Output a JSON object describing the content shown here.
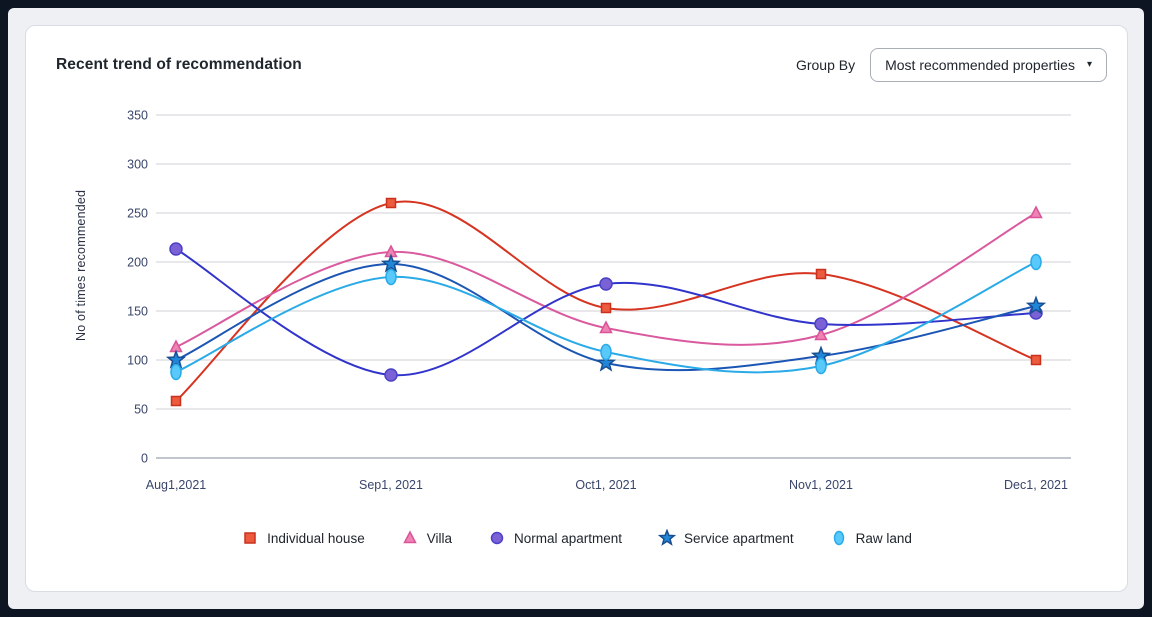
{
  "window": {
    "frame_color": "#0d1422",
    "page_bg": "#eef0f3",
    "card_bg": "#ffffff"
  },
  "header": {
    "title": "Recent trend of recommendation",
    "group_by_label": "Group By",
    "group_by_value": "Most recommended properties",
    "dropdown_caret": "▾"
  },
  "chart_data": {
    "type": "line",
    "title": "Recent trend of recommendation",
    "xlabel": "",
    "ylabel": "No of times recommended",
    "categories": [
      "Aug1,2021",
      "Sep1, 2021",
      "Oct1, 2021",
      "Nov1, 2021",
      "Dec1, 2021"
    ],
    "ylim": [
      0,
      350
    ],
    "ytick_step": 50,
    "grid": true,
    "legend_position": "bottom",
    "curve": "smooth",
    "colors": {
      "gridline": "#d9d9de",
      "zero_line": "#9aa2b4",
      "tick_text": "#39456b"
    },
    "series": [
      {
        "name": "Individual house",
        "marker": "square",
        "line_color": "#d63420",
        "marker_fill": "#ec5b3e",
        "marker_stroke": "#c9311d",
        "values": [
          58,
          260,
          153,
          188,
          100
        ]
      },
      {
        "name": "Villa",
        "marker": "triangle",
        "line_color": "#d95a9e",
        "marker_fill": "#ef83b2",
        "marker_stroke": "#d9549a",
        "values": [
          113,
          210,
          133,
          126,
          250
        ]
      },
      {
        "name": "Normal apartment",
        "marker": "circle",
        "line_color": "#3134cb",
        "marker_fill": "#7b61d6",
        "marker_stroke": "#4b41c6",
        "values": [
          213,
          85,
          178,
          137,
          148
        ]
      },
      {
        "name": "Service apartment",
        "marker": "star",
        "line_color": "#1c56b4",
        "marker_fill": "#2286d8",
        "marker_stroke": "#174f92",
        "values": [
          100,
          198,
          97,
          104,
          155
        ]
      },
      {
        "name": "Raw land",
        "marker": "oval",
        "line_color": "#2aabe8",
        "marker_fill": "#58c9fa",
        "marker_stroke": "#2aabe8",
        "values": [
          88,
          185,
          108,
          94,
          200
        ]
      }
    ]
  }
}
